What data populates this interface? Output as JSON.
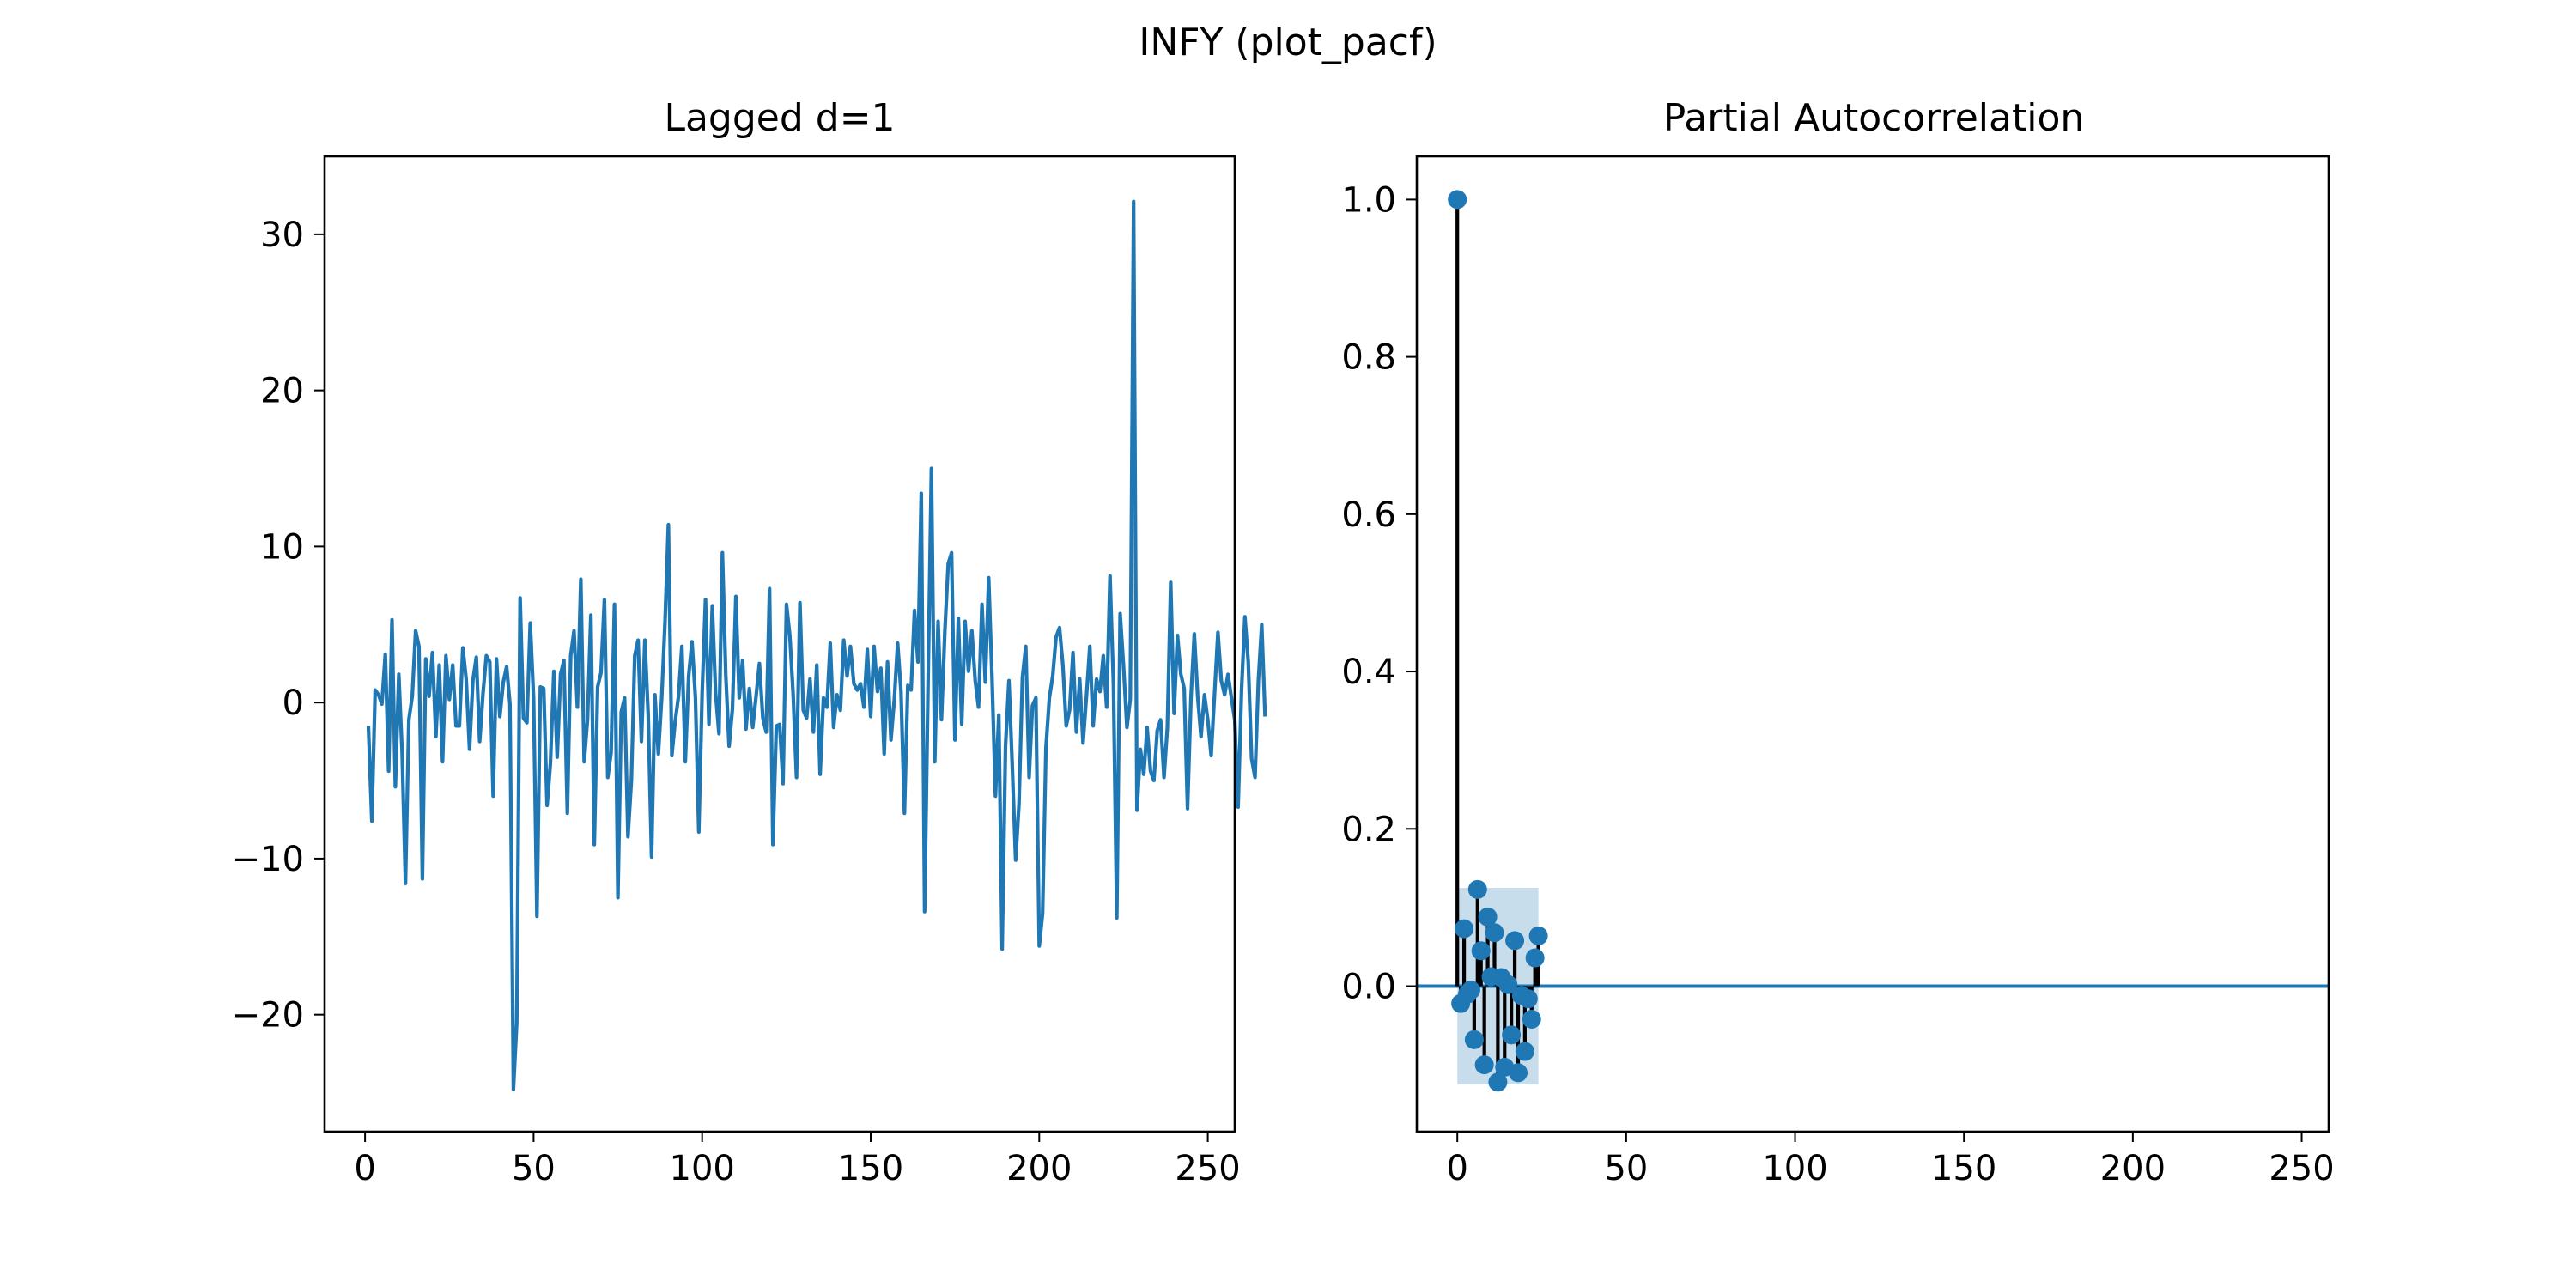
{
  "figure": {
    "suptitle": "INFY (plot_pacf)"
  },
  "chart_data": [
    {
      "type": "line",
      "title": "Lagged d=1",
      "xlabel": "",
      "ylabel": "",
      "xlim": [
        -12,
        258
      ],
      "ylim": [
        -27.5,
        35
      ],
      "xticks": [
        0,
        50,
        100,
        150,
        200,
        250
      ],
      "xtick_labels": [
        "0",
        "50",
        "100",
        "150",
        "200",
        "250"
      ],
      "yticks": [
        -20,
        -10,
        0,
        10,
        20,
        30
      ],
      "ytick_labels": [
        "−20",
        "−10",
        "0",
        "10",
        "20",
        "30"
      ],
      "grid": false,
      "color": "#1f77b4",
      "series": [
        {
          "x_start": 1,
          "values": [
            -1.5,
            -7.6,
            0.8,
            0.5,
            -0.1,
            3.1,
            -4.4,
            5.3,
            -5.4,
            1.8,
            -3.2,
            -11.6,
            -1.1,
            0.4,
            4.6,
            3.6,
            -11.3,
            2.8,
            0.4,
            3.2,
            -2.2,
            2.4,
            -3.8,
            3.0,
            0.2,
            2.4,
            -1.5,
            -1.5,
            3.5,
            1.5,
            -3.0,
            1.4,
            2.9,
            -2.5,
            0.6,
            3.0,
            2.6,
            -6.0,
            2.8,
            -0.9,
            1.3,
            2.3,
            -0.1,
            -24.8,
            -20.5,
            6.7,
            -1.0,
            -1.3,
            5.1,
            0.3,
            -13.7,
            1.0,
            0.9,
            -6.6,
            -3.9,
            2.0,
            -3.5,
            1.8,
            2.7,
            -7.1,
            3.0,
            4.6,
            -0.3,
            7.9,
            -3.8,
            -1.1,
            5.6,
            -9.1,
            1.0,
            1.9,
            6.6,
            -4.8,
            -3.2,
            6.3,
            -12.5,
            -0.6,
            0.3,
            -8.6,
            -5.0,
            3.0,
            4.0,
            -2.5,
            4.0,
            -0.8,
            -9.9,
            0.5,
            -3.3,
            0.3,
            5.2,
            11.4,
            -3.4,
            -1.2,
            0.4,
            3.6,
            -3.8,
            1.7,
            3.9,
            0.3,
            -8.3,
            0.6,
            6.6,
            -1.4,
            6.2,
            0.6,
            -2.0,
            9.6,
            1.8,
            -2.8,
            -0.4,
            6.8,
            0.3,
            2.7,
            -1.7,
            0.9,
            -1.6,
            0.4,
            2.5,
            -1.0,
            -1.9,
            7.3,
            -9.1,
            -1.5,
            -1.4,
            -5.2,
            6.3,
            4.3,
            0.5,
            -4.8,
            6.4,
            -0.5,
            -1.0,
            1.5,
            -1.9,
            2.4,
            -4.6,
            0.3,
            -0.3,
            3.8,
            -1.6,
            0.5,
            -0.5,
            4.0,
            1.7,
            3.6,
            1.2,
            0.8,
            1.2,
            -0.3,
            3.4,
            -0.9,
            3.6,
            0.7,
            2.2,
            -3.3,
            2.6,
            -2.4,
            0.2,
            3.8,
            0.7,
            -7.1,
            1.1,
            0.8,
            5.9,
            2.6,
            13.4,
            -13.4,
            0.8,
            15.0,
            -3.8,
            5.2,
            -1.1,
            4.6,
            8.9,
            9.6,
            -2.4,
            5.4,
            -1.4,
            5.2,
            2.0,
            4.6,
            1.4,
            -0.3,
            6.3,
            1.3,
            8.0,
            1.6,
            -6.0,
            -0.8,
            -15.8,
            -2.8,
            1.4,
            -4.1,
            -10.1,
            -6.5,
            1.6,
            3.6,
            -4.8,
            -0.2,
            0.3,
            -15.6,
            -13.5,
            -2.9,
            0.3,
            1.7,
            4.2,
            4.8,
            2.4,
            -1.5,
            -0.5,
            3.2,
            -1.9,
            1.5,
            -2.6,
            0.4,
            3.6,
            -1.5,
            1.5,
            0.7,
            3.0,
            -0.3,
            8.1,
            1.2,
            -13.8,
            5.7,
            2.4,
            -1.6,
            0.2,
            32.1,
            -6.9,
            -3.0,
            -4.6,
            -1.6,
            -4.4,
            -5.0,
            -1.8,
            -1.1,
            -4.8,
            -1.6,
            7.7,
            -0.7,
            4.3,
            1.8,
            0.9,
            -6.8,
            0.3,
            4.4,
            0.4,
            -2.2,
            0.5,
            -1.1,
            -3.4,
            0.5,
            4.5,
            1.4,
            0.5,
            1.8,
            0.3,
            -1.1,
            -6.7,
            0.8,
            5.5,
            2.6,
            -3.6,
            -4.8,
            1.4,
            5.0,
            -0.9
          ]
        }
      ]
    },
    {
      "type": "stem",
      "title": "Partial Autocorrelation",
      "xlabel": "",
      "ylabel": "",
      "xlim": [
        -12,
        258
      ],
      "ylim": [
        -0.185,
        1.055
      ],
      "xticks": [
        0,
        50,
        100,
        150,
        200,
        250
      ],
      "xtick_labels": [
        "0",
        "50",
        "100",
        "150",
        "200",
        "250"
      ],
      "yticks": [
        0.0,
        0.2,
        0.4,
        0.6,
        0.8,
        1.0
      ],
      "ytick_labels": [
        "0.0",
        "0.2",
        "0.4",
        "0.6",
        "0.8",
        "1.0"
      ],
      "grid": false,
      "marker_color": "#1f77b4",
      "stem_color": "#000000",
      "zero_line": 0,
      "confidence_band": {
        "x": [
          0,
          24
        ],
        "y": [
          -0.125,
          0.125
        ],
        "color": "#1f77b4",
        "opacity": 0.25
      },
      "series": [
        {
          "lags": [
            0,
            1,
            2,
            3,
            4,
            5,
            6,
            7,
            8,
            9,
            10,
            11,
            12,
            13,
            14,
            15,
            16,
            17,
            18,
            19,
            20,
            21,
            22,
            23,
            24
          ],
          "values": [
            1.0,
            -0.022,
            0.073,
            -0.01,
            -0.005,
            -0.068,
            0.123,
            0.045,
            -0.1,
            0.088,
            0.012,
            0.068,
            -0.122,
            0.011,
            -0.103,
            0.002,
            -0.062,
            0.058,
            -0.11,
            -0.012,
            -0.083,
            -0.016,
            -0.042,
            0.036,
            0.064
          ]
        }
      ]
    }
  ]
}
